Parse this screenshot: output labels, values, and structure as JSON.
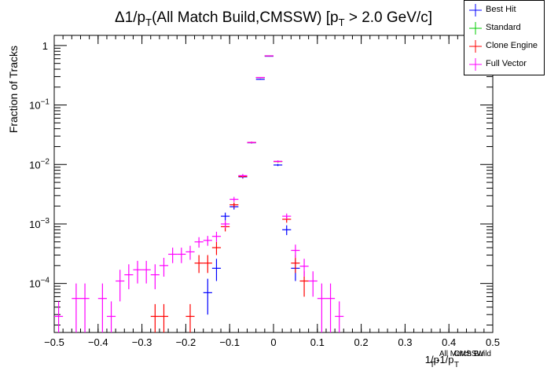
{
  "chart_data": {
    "type": "scatter",
    "title_parts": {
      "delta": "Δ1/p",
      "sub_T": "T",
      "mid": "(All Match Build,CMSSW) [p",
      "sub_T2": "T",
      "end": " > 2.0 GeV/c]"
    },
    "title": "Δ1/pT(All Match Build,CMSSW) [pT > 2.0 GeV/c]",
    "ylabel": "Fraction of Tracks",
    "xlabel_parts": {
      "a": "1/p",
      "sup1": "All Match Build",
      "sub1": "T",
      "b": "-1/p",
      "sup2": "CMSSW",
      "sub2": "T"
    },
    "xlim": [
      -0.5,
      0.5
    ],
    "ylim": [
      1.5e-05,
      1.48
    ],
    "yscale": "log",
    "bin_width": 0.02,
    "x_ticks": [
      "−0.5",
      "−0.4",
      "−0.3",
      "−0.2",
      "−0.1",
      "0",
      "0.1",
      "0.2",
      "0.3",
      "0.4",
      "0.5"
    ],
    "x_tick_values": [
      -0.5,
      -0.4,
      -0.3,
      -0.2,
      -0.1,
      0,
      0.1,
      0.2,
      0.3,
      0.4,
      0.5
    ],
    "y_ticks": [
      {
        "value": 1,
        "base": "1",
        "exp": ""
      },
      {
        "value": 0.1,
        "base": "10",
        "exp": "−1"
      },
      {
        "value": 0.01,
        "base": "10",
        "exp": "−2"
      },
      {
        "value": 0.001,
        "base": "10",
        "exp": "−3"
      },
      {
        "value": 0.0001,
        "base": "10",
        "exp": "−4"
      }
    ],
    "legend_position": "top-right",
    "series": [
      {
        "name": "Best Hit",
        "color": "#0000ff",
        "points": [
          {
            "x": -0.15,
            "y": 7e-05,
            "lo": 3e-05,
            "hi": 0.00012
          },
          {
            "x": -0.13,
            "y": 0.00018,
            "lo": 0.00011,
            "hi": 0.00026
          },
          {
            "x": -0.11,
            "y": 0.00135,
            "lo": 0.00115,
            "hi": 0.00155
          },
          {
            "x": -0.09,
            "y": 0.00195,
            "lo": 0.00175,
            "hi": 0.0022
          },
          {
            "x": -0.07,
            "y": 0.0062,
            "lo": 0.0058,
            "hi": 0.0066
          },
          {
            "x": -0.05,
            "y": 0.0232,
            "lo": 0.0225,
            "hi": 0.024
          },
          {
            "x": -0.03,
            "y": 0.27,
            "lo": 0.265,
            "hi": 0.275
          },
          {
            "x": -0.01,
            "y": 0.66,
            "lo": 0.65,
            "hi": 0.67
          },
          {
            "x": 0.01,
            "y": 0.0098,
            "lo": 0.0094,
            "hi": 0.0102
          },
          {
            "x": 0.03,
            "y": 0.0008,
            "lo": 0.00065,
            "hi": 0.00095
          },
          {
            "x": 0.05,
            "y": 0.00018,
            "lo": 0.00011,
            "hi": 0.00026
          }
        ]
      },
      {
        "name": "Standard",
        "color": "#00cc00",
        "points": [
          {
            "x": -0.07,
            "y": 0.0064,
            "lo": 0.006,
            "hi": 0.0068
          },
          {
            "x": -0.05,
            "y": 0.0235,
            "lo": 0.0228,
            "hi": 0.0242
          },
          {
            "x": -0.03,
            "y": 0.29,
            "lo": 0.285,
            "hi": 0.295
          },
          {
            "x": -0.01,
            "y": 0.67,
            "lo": 0.66,
            "hi": 0.68
          },
          {
            "x": 0.01,
            "y": 0.0112,
            "lo": 0.0108,
            "hi": 0.0116
          }
        ]
      },
      {
        "name": "Clone Engine",
        "color": "#ff0000",
        "points": [
          {
            "x": -0.27,
            "y": 2.8e-05,
            "lo": 1.5e-05,
            "hi": 4.5e-05
          },
          {
            "x": -0.25,
            "y": 2.8e-05,
            "lo": 1.5e-05,
            "hi": 4.5e-05
          },
          {
            "x": -0.19,
            "y": 2.8e-05,
            "lo": 1.5e-05,
            "hi": 4.5e-05
          },
          {
            "x": -0.17,
            "y": 0.00022,
            "lo": 0.00015,
            "hi": 0.0003
          },
          {
            "x": -0.15,
            "y": 0.00022,
            "lo": 0.00015,
            "hi": 0.0003
          },
          {
            "x": -0.13,
            "y": 0.0004,
            "lo": 0.0003,
            "hi": 0.0005
          },
          {
            "x": -0.11,
            "y": 0.0009,
            "lo": 0.00075,
            "hi": 0.00105
          },
          {
            "x": -0.09,
            "y": 0.0021,
            "lo": 0.0019,
            "hi": 0.0023
          },
          {
            "x": -0.07,
            "y": 0.0063,
            "lo": 0.0059,
            "hi": 0.0067
          },
          {
            "x": -0.05,
            "y": 0.0234,
            "lo": 0.0227,
            "hi": 0.0241
          },
          {
            "x": -0.03,
            "y": 0.29,
            "lo": 0.285,
            "hi": 0.295
          },
          {
            "x": -0.01,
            "y": 0.67,
            "lo": 0.66,
            "hi": 0.68
          },
          {
            "x": 0.01,
            "y": 0.0112,
            "lo": 0.0108,
            "hi": 0.0116
          },
          {
            "x": 0.03,
            "y": 0.0012,
            "lo": 0.00105,
            "hi": 0.00135
          },
          {
            "x": 0.05,
            "y": 0.00022,
            "lo": 0.00015,
            "hi": 0.0003
          },
          {
            "x": 0.07,
            "y": 0.00011,
            "lo": 6e-05,
            "hi": 0.00016
          }
        ]
      },
      {
        "name": "Full Vector",
        "color": "#ff00ff",
        "points": [
          {
            "x": -0.49,
            "y": 2.8e-05,
            "lo": 1.5e-05,
            "hi": 5e-05
          },
          {
            "x": -0.45,
            "y": 5.6e-05,
            "lo": 1.5e-05,
            "hi": 0.0001
          },
          {
            "x": -0.43,
            "y": 5.6e-05,
            "lo": 1.5e-05,
            "hi": 0.0001
          },
          {
            "x": -0.39,
            "y": 5.6e-05,
            "lo": 1.5e-05,
            "hi": 0.0001
          },
          {
            "x": -0.37,
            "y": 2.8e-05,
            "lo": 1.5e-05,
            "hi": 5e-05
          },
          {
            "x": -0.35,
            "y": 0.00011,
            "lo": 5e-05,
            "hi": 0.00017
          },
          {
            "x": -0.33,
            "y": 0.00014,
            "lo": 8e-05,
            "hi": 0.00021
          },
          {
            "x": -0.31,
            "y": 0.00017,
            "lo": 0.0001,
            "hi": 0.00024
          },
          {
            "x": -0.29,
            "y": 0.00017,
            "lo": 0.0001,
            "hi": 0.00024
          },
          {
            "x": -0.27,
            "y": 0.00014,
            "lo": 8e-05,
            "hi": 0.00021
          },
          {
            "x": -0.25,
            "y": 0.0002,
            "lo": 0.00013,
            "hi": 0.00027
          },
          {
            "x": -0.23,
            "y": 0.00031,
            "lo": 0.00022,
            "hi": 0.0004
          },
          {
            "x": -0.21,
            "y": 0.00031,
            "lo": 0.00022,
            "hi": 0.0004
          },
          {
            "x": -0.19,
            "y": 0.00034,
            "lo": 0.00025,
            "hi": 0.00043
          },
          {
            "x": -0.17,
            "y": 0.0005,
            "lo": 0.0004,
            "hi": 0.0006
          },
          {
            "x": -0.15,
            "y": 0.00053,
            "lo": 0.00043,
            "hi": 0.00063
          },
          {
            "x": -0.13,
            "y": 0.00062,
            "lo": 0.0005,
            "hi": 0.00074
          },
          {
            "x": -0.11,
            "y": 0.001,
            "lo": 0.00085,
            "hi": 0.00115
          },
          {
            "x": -0.09,
            "y": 0.0026,
            "lo": 0.00235,
            "hi": 0.00285
          },
          {
            "x": -0.07,
            "y": 0.0065,
            "lo": 0.0061,
            "hi": 0.0069
          },
          {
            "x": -0.05,
            "y": 0.0235,
            "lo": 0.0228,
            "hi": 0.0242
          },
          {
            "x": -0.03,
            "y": 0.29,
            "lo": 0.285,
            "hi": 0.295
          },
          {
            "x": -0.01,
            "y": 0.67,
            "lo": 0.66,
            "hi": 0.68
          },
          {
            "x": 0.01,
            "y": 0.0113,
            "lo": 0.0109,
            "hi": 0.0117
          },
          {
            "x": 0.03,
            "y": 0.00135,
            "lo": 0.0012,
            "hi": 0.0015
          },
          {
            "x": 0.05,
            "y": 0.00036,
            "lo": 0.00027,
            "hi": 0.00045
          },
          {
            "x": 0.07,
            "y": 0.000195,
            "lo": 0.00013,
            "hi": 0.00026
          },
          {
            "x": 0.09,
            "y": 0.00011,
            "lo": 6e-05,
            "hi": 0.00016
          },
          {
            "x": 0.11,
            "y": 5.6e-05,
            "lo": 1.5e-05,
            "hi": 0.0001
          },
          {
            "x": 0.13,
            "y": 5.6e-05,
            "lo": 1.5e-05,
            "hi": 0.0001
          },
          {
            "x": 0.15,
            "y": 2.8e-05,
            "lo": 1.5e-05,
            "hi": 5e-05
          }
        ]
      }
    ]
  }
}
